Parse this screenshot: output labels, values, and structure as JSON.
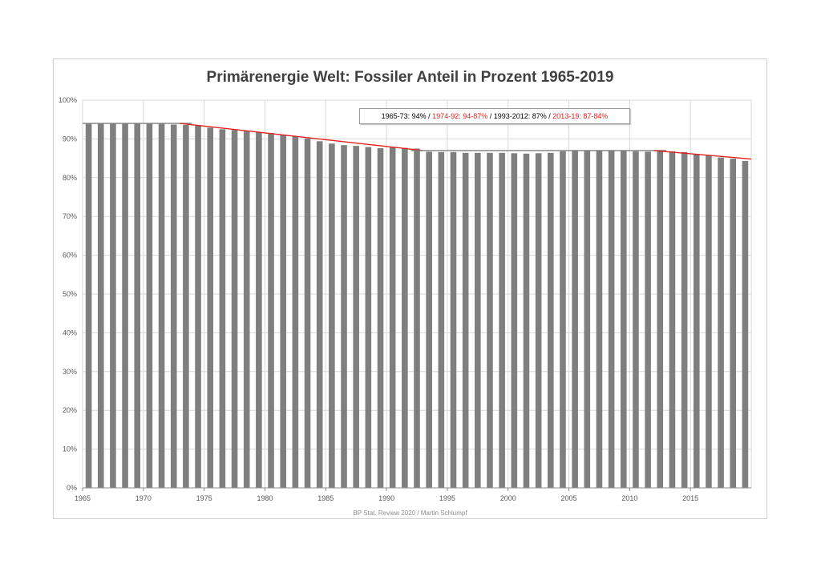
{
  "chart_data": {
    "type": "bar",
    "title": "Primärenergie Welt: Fossiler Anteil in Prozent  1965-2019",
    "x_start": 1965,
    "x_end": 2019,
    "xticks": [
      "1965",
      "1970",
      "1975",
      "1980",
      "1985",
      "1990",
      "1995",
      "2000",
      "2005",
      "2010",
      "2015"
    ],
    "yticks": [
      "0%",
      "10%",
      "20%",
      "30%",
      "40%",
      "50%",
      "60%",
      "70%",
      "80%",
      "90%",
      "100%"
    ],
    "ylim": [
      0,
      100
    ],
    "values": [
      94.1,
      94.1,
      94.1,
      94.0,
      94.0,
      94.0,
      94.0,
      93.7,
      93.6,
      93.6,
      92.9,
      92.5,
      92.3,
      92.0,
      91.7,
      91.5,
      91.1,
      90.6,
      90.1,
      89.4,
      88.8,
      88.4,
      88.2,
      87.9,
      87.6,
      87.8,
      87.7,
      87.5,
      86.7,
      86.6,
      86.6,
      86.4,
      86.4,
      86.4,
      86.4,
      86.3,
      86.2,
      86.3,
      86.4,
      86.8,
      86.9,
      86.9,
      87.0,
      87.0,
      86.9,
      86.8,
      86.7,
      87.0,
      86.8,
      86.6,
      86.1,
      85.7,
      85.2,
      84.9,
      84.3
    ],
    "trend_lines": [
      {
        "from": [
          1965,
          94
        ],
        "to": [
          1973,
          94
        ],
        "color": "#808080"
      },
      {
        "from": [
          1973,
          94
        ],
        "to": [
          1992,
          87
        ],
        "color": "#e0201a"
      },
      {
        "from": [
          1992,
          87
        ],
        "to": [
          2012,
          87
        ],
        "color": "#808080"
      },
      {
        "from": [
          2012,
          87
        ],
        "to": [
          2019,
          84.8
        ],
        "color": "#e0201a"
      }
    ],
    "grid": true,
    "bar_color": "#7f7f7f"
  },
  "legend_parts": {
    "p1": "1965-73: 94% / ",
    "p2": "1974-92: 94-87%",
    "p3": " / 1993-2012: 87% / ",
    "p4": "2013-19: 87-84%"
  },
  "source": "BP Stat. Review 2020 / Martin Schlumpf"
}
